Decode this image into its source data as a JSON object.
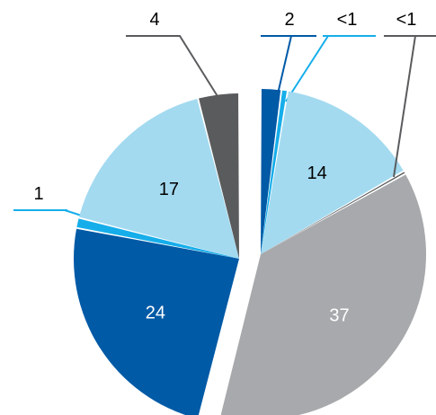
{
  "chart_data": {
    "type": "pie",
    "title": "",
    "legend": "none",
    "slices": [
      {
        "label": "2",
        "value": 2,
        "color": "#005aa6",
        "group": "a"
      },
      {
        "label": "<1",
        "value": 0.6,
        "color": "#16aeea",
        "group": "a"
      },
      {
        "label": "14",
        "value": 14,
        "color": "#a3daf0",
        "group": "a"
      },
      {
        "label": "<1",
        "value": 0.3,
        "color": "#5a5b5d",
        "group": "a"
      },
      {
        "label": "37",
        "value": 37,
        "color": "#a8a9ac",
        "group": "a"
      },
      {
        "label": "24",
        "value": 24,
        "color": "#005aa6",
        "group": "b"
      },
      {
        "label": "1",
        "value": 1,
        "color": "#16aeea",
        "group": "b"
      },
      {
        "label": "17",
        "value": 17,
        "color": "#a3daf0",
        "group": "b"
      },
      {
        "label": "4",
        "value": 4,
        "color": "#5a5b5d",
        "group": "b"
      }
    ]
  }
}
